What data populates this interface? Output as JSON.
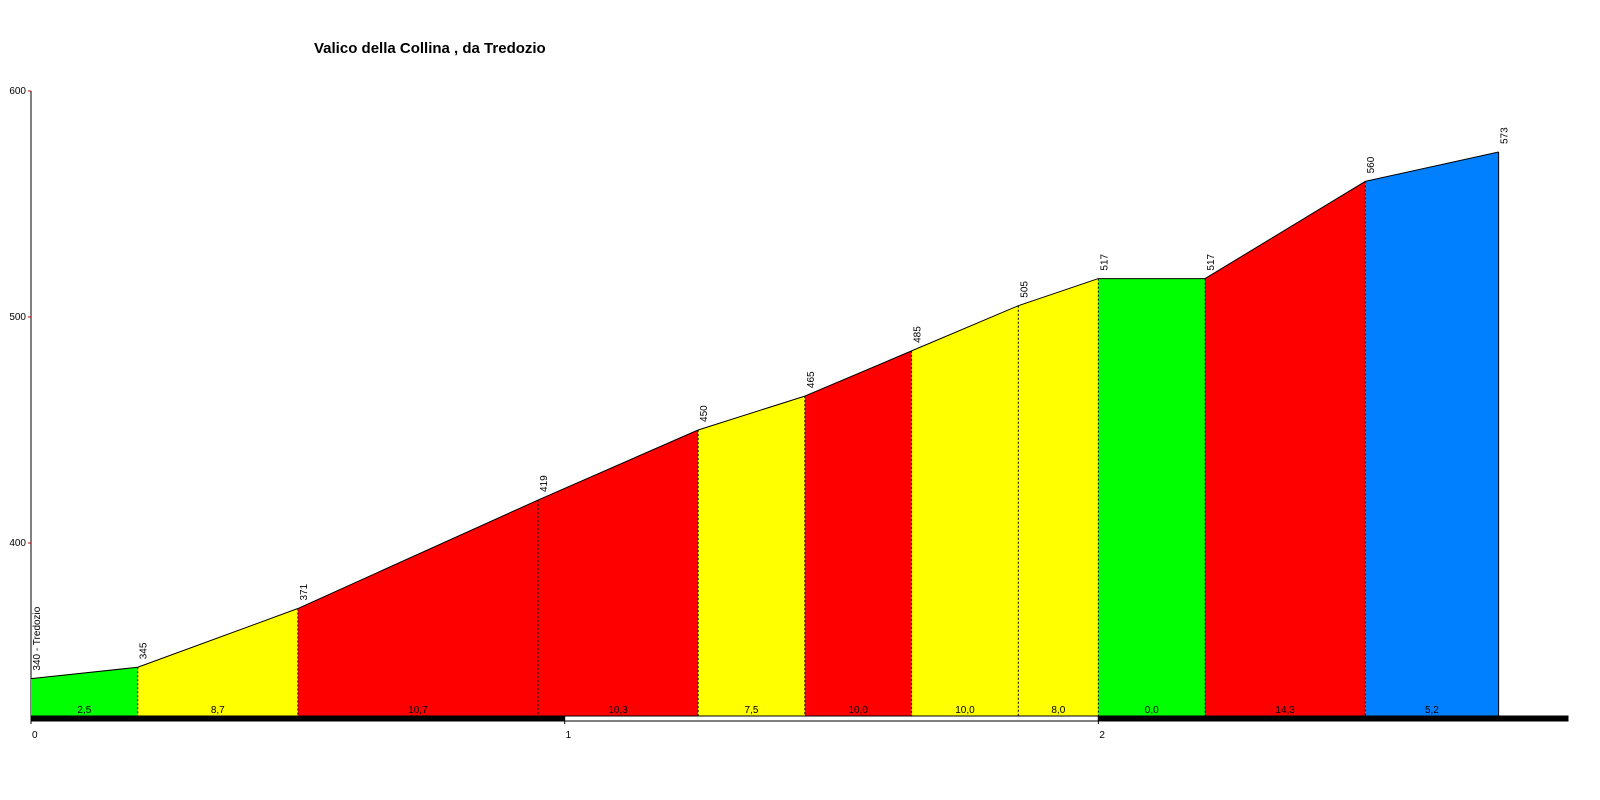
{
  "chart_data": {
    "type": "elevation_profile",
    "title": "Valico della Collina , da Tredozio",
    "x": [
      0,
      0.2,
      0.5,
      0.95,
      1.25,
      1.45,
      1.65,
      1.85,
      2.0,
      2.2,
      2.5,
      2.75
    ],
    "values": [
      340,
      345,
      371,
      419,
      450,
      465,
      485,
      505,
      517,
      517,
      560,
      573
    ],
    "value_labels": [
      "340 - Tredozio",
      "345",
      "371",
      "419",
      "450",
      "465",
      "485",
      "505",
      "517",
      "517",
      "560",
      "573"
    ],
    "segments": [
      {
        "value": 2.5,
        "label": "2,5",
        "color": "#00ff00"
      },
      {
        "value": 8.7,
        "label": "8,7",
        "color": "#ffff00"
      },
      {
        "value": 10.7,
        "label": "10,7",
        "color": "#ff0000"
      },
      {
        "value": 10.3,
        "label": "10,3",
        "color": "#ff0000"
      },
      {
        "value": 7.5,
        "label": "7,5",
        "color": "#ffff00"
      },
      {
        "value": 10.0,
        "label": "10,0",
        "color": "#ff0000"
      },
      {
        "value": 10.0,
        "label": "10,0",
        "color": "#ffff00"
      },
      {
        "value": 8.0,
        "label": "8,0",
        "color": "#ffff00"
      },
      {
        "value": 0.0,
        "label": "0,0",
        "color": "#00ff00"
      },
      {
        "value": 14.3,
        "label": "14,3",
        "color": "#ff0000"
      },
      {
        "value": 5.2,
        "label": "5,2",
        "color": "#0080ff"
      }
    ],
    "xlim": [
      0,
      2.88
    ],
    "xticks": [
      0,
      1,
      2
    ],
    "ylim": [
      323,
      600
    ],
    "yticks": [
      400,
      500,
      600
    ]
  }
}
